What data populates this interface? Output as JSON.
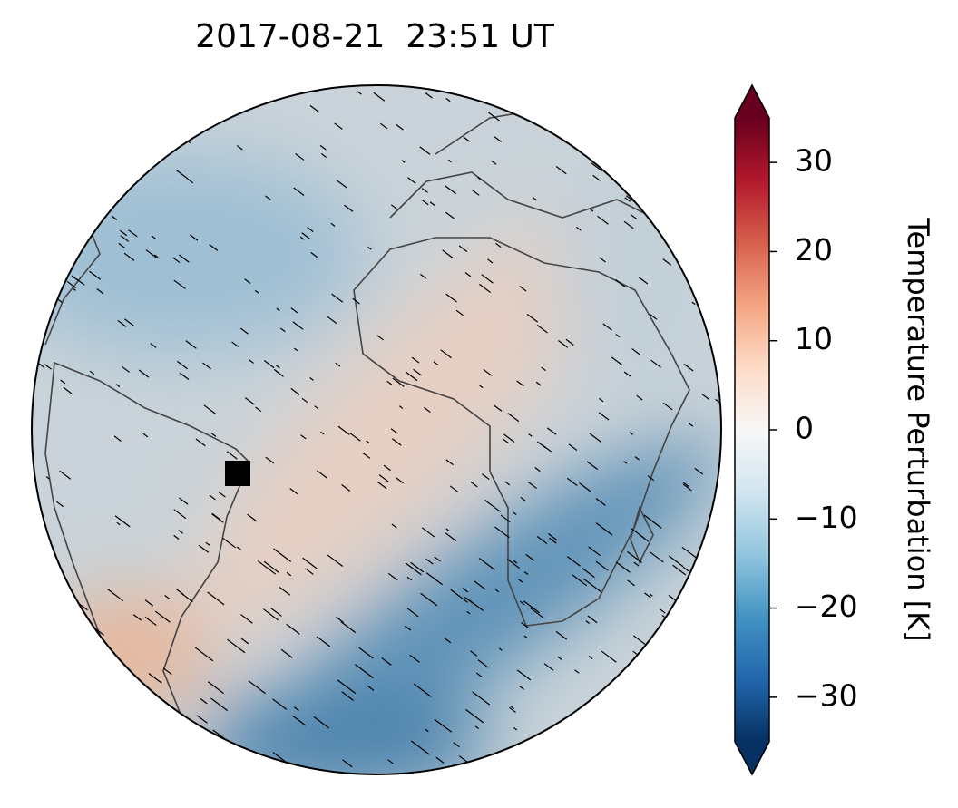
{
  "title": "2017-08-21  23:51 UT",
  "colorbar": {
    "label": "Temperature Perturbation [K]",
    "lim": [
      -35,
      35
    ],
    "extend": "both",
    "ticks": [
      {
        "value": -30,
        "label": "−30"
      },
      {
        "value": -20,
        "label": "−20"
      },
      {
        "value": -10,
        "label": "−10"
      },
      0,
      10,
      20,
      30
    ]
  }
}
